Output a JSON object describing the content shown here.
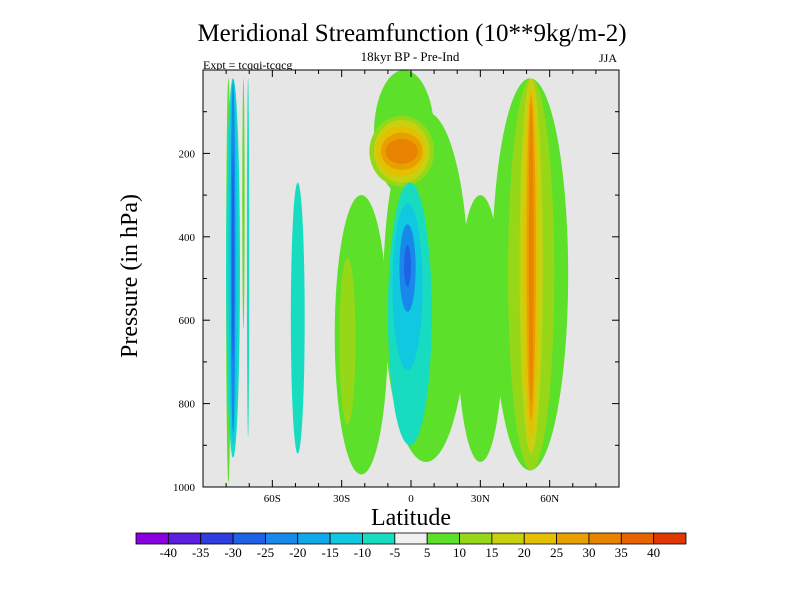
{
  "chart_data": {
    "type": "contour",
    "title": "Meridional Streamfunction (10**9kg/m-2)",
    "subtitle": "18kyr BP - Pre-Ind",
    "experiment_label": "Expt = tcqqi-tcqcg",
    "season": "JJA",
    "xlabel": "Latitude",
    "ylabel": "Pressure (in hPa)",
    "xlim": [
      -90,
      90
    ],
    "ylim": [
      1000,
      0
    ],
    "x_ticks": [
      {
        "value": -60,
        "label": "60S"
      },
      {
        "value": -30,
        "label": "30S"
      },
      {
        "value": 0,
        "label": "0"
      },
      {
        "value": 30,
        "label": "30N"
      },
      {
        "value": 60,
        "label": "60N"
      }
    ],
    "y_ticks": [
      {
        "value": 200,
        "label": "200"
      },
      {
        "value": 400,
        "label": "400"
      },
      {
        "value": 600,
        "label": "600"
      },
      {
        "value": 800,
        "label": "800"
      },
      {
        "value": 1000,
        "label": "1000"
      }
    ],
    "missing_color": "#e6e6e6",
    "colorbar": {
      "bins": [
        {
          "color": "#8a00e0"
        },
        {
          "color": "#5a1fe0"
        },
        {
          "color": "#2f3ce0"
        },
        {
          "color": "#1f62e6"
        },
        {
          "color": "#1888ea"
        },
        {
          "color": "#10a8e8"
        },
        {
          "color": "#10c8e0"
        },
        {
          "color": "#18dcc0"
        },
        {
          "color": "#f0f0f0"
        },
        {
          "color": "#5ce02a"
        },
        {
          "color": "#96d818"
        },
        {
          "color": "#c8d010"
        },
        {
          "color": "#e4c000"
        },
        {
          "color": "#e8a000"
        },
        {
          "color": "#e88400"
        },
        {
          "color": "#e86400"
        },
        {
          "color": "#e03800"
        }
      ],
      "labels": [
        "-40",
        "-35",
        "-30",
        "-25",
        "-20",
        "-15",
        "-10",
        "-5",
        "5",
        "10",
        "15",
        "20",
        "25",
        "30",
        "35",
        "40"
      ]
    },
    "regions": [
      {
        "level": 5,
        "color": "#5ce02a",
        "lat": [
          -80,
          -78
        ],
        "p": [
          20,
          990
        ]
      },
      {
        "level": -10,
        "color": "#18dcc0",
        "lat": [
          -80,
          -74
        ],
        "p": [
          20,
          930
        ]
      },
      {
        "level": -15,
        "color": "#10c8e0",
        "lat": [
          -79,
          -75
        ],
        "p": [
          20,
          900
        ]
      },
      {
        "level": -20,
        "color": "#1888ea",
        "lat": [
          -78,
          -76
        ],
        "p": [
          30,
          870
        ]
      },
      {
        "level": -25,
        "color": "#1f62e6",
        "lat": [
          -77.5,
          -76.5
        ],
        "p": [
          200,
          700
        ]
      },
      {
        "level": -10,
        "color": "#18dcc0",
        "lat": [
          -71,
          -70
        ],
        "p": [
          20,
          880
        ]
      },
      {
        "level": 5,
        "color": "#5ce02a",
        "lat": [
          -73,
          -72
        ],
        "p": [
          20,
          620
        ]
      },
      {
        "level": -10,
        "color": "#18dcc0",
        "lat": [
          -52,
          -46
        ],
        "p": [
          270,
          920
        ]
      },
      {
        "level": 5,
        "color": "#5ce02a",
        "lat": [
          -33,
          -10
        ],
        "p": [
          300,
          970
        ]
      },
      {
        "level": 10,
        "color": "#96d818",
        "lat": [
          -31,
          -24
        ],
        "p": [
          450,
          850
        ]
      },
      {
        "level": 5,
        "color": "#5ce02a",
        "lat": [
          -16,
          10
        ],
        "p": [
          0,
          300
        ]
      },
      {
        "level": 5,
        "color": "#5ce02a",
        "lat": [
          -12,
          25
        ],
        "p": [
          100,
          940
        ]
      },
      {
        "level": 10,
        "color": "#96d818",
        "lat": [
          -18,
          10
        ],
        "p": [
          110,
          280
        ]
      },
      {
        "level": 15,
        "color": "#c8d010",
        "lat": [
          -16,
          8
        ],
        "p": [
          120,
          270
        ]
      },
      {
        "level": 20,
        "color": "#e4c000",
        "lat": [
          -15,
          6
        ],
        "p": [
          135,
          255
        ]
      },
      {
        "level": 25,
        "color": "#e8a000",
        "lat": [
          -13,
          5
        ],
        "p": [
          150,
          240
        ]
      },
      {
        "level": 30,
        "color": "#e88400",
        "lat": [
          -11,
          3
        ],
        "p": [
          165,
          225
        ]
      },
      {
        "level": -10,
        "color": "#18dcc0",
        "lat": [
          -10,
          9
        ],
        "p": [
          270,
          900
        ]
      },
      {
        "level": -15,
        "color": "#10c8e0",
        "lat": [
          -8,
          5
        ],
        "p": [
          320,
          720
        ]
      },
      {
        "level": -20,
        "color": "#1888ea",
        "lat": [
          -5,
          2
        ],
        "p": [
          370,
          580
        ]
      },
      {
        "level": -25,
        "color": "#1f62e6",
        "lat": [
          -3,
          0
        ],
        "p": [
          420,
          520
        ]
      },
      {
        "level": 5,
        "color": "#5ce02a",
        "lat": [
          20,
          40
        ],
        "p": [
          300,
          940
        ]
      },
      {
        "level": 5,
        "color": "#5ce02a",
        "lat": [
          35,
          68
        ],
        "p": [
          20,
          960
        ]
      },
      {
        "level": 10,
        "color": "#96d818",
        "lat": [
          42,
          62
        ],
        "p": [
          20,
          960
        ]
      },
      {
        "level": 15,
        "color": "#c8d010",
        "lat": [
          47,
          57
        ],
        "p": [
          20,
          920
        ]
      },
      {
        "level": 20,
        "color": "#e4c000",
        "lat": [
          49,
          55
        ],
        "p": [
          40,
          880
        ]
      },
      {
        "level": 25,
        "color": "#e8a000",
        "lat": [
          50,
          54
        ],
        "p": [
          60,
          840
        ]
      },
      {
        "level": 30,
        "color": "#e88400",
        "lat": [
          51,
          53
        ],
        "p": [
          80,
          800
        ]
      }
    ]
  }
}
